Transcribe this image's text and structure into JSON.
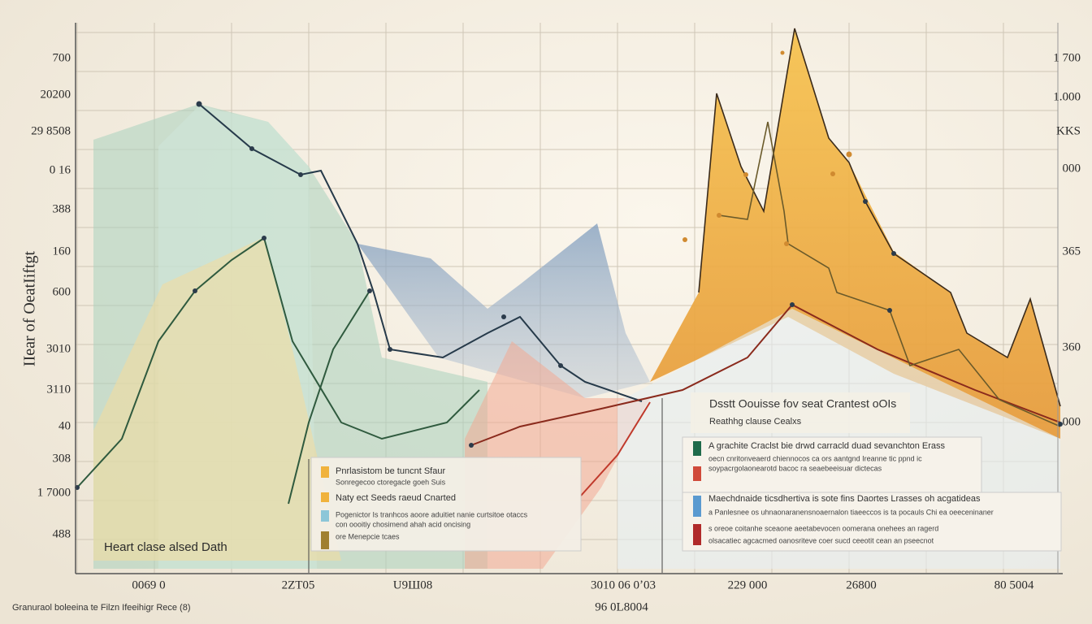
{
  "y_axis_title": "IIear of OeatIiftgt",
  "inset_title": "Heart clase alsed Dath",
  "y_labels": [
    "700",
    "20200",
    "29 8508",
    "0 16",
    "388",
    "160",
    "600",
    "3010",
    "3110",
    "40",
    "308",
    "1 7000",
    "488"
  ],
  "y2_labels": [
    "1 700",
    "1.000",
    "KKS",
    "000",
    "365",
    "360",
    "000"
  ],
  "x_labels": [
    "0069 0",
    "2ZT05",
    "U9Ш08",
    "3010 06 0ʼ03",
    "229 000",
    "26800",
    "80 5004"
  ],
  "x_sub_label": "96 0L8004",
  "footnote": "Granuraol boleeina te Filzn Ifeeihigr Rece (8)",
  "legend_left": [
    "Pnrlasistom be tuncnt Sfaur",
    "Sonregecoo ctoregacle goeh Suis",
    "Naty ect Seeds raeud Cnarted",
    "Pogenictor Is tranhcos aoore aduitiet nanie curtsitoe otaccs",
    "con oooitiy chosimend ahah acid oncising",
    "ore Menepcie tcaes"
  ],
  "note": [
    "Dsstt Oouisse fov seat Crantest oOIs",
    "Reathhg clause Cealxs"
  ],
  "legend_right": [
    "A grachite Craclst bie drwd carracld duad sevanchton Erass",
    "oecn cnritonveaerd chiennocos ca ors aantgnd Ireanne tic ppnd ic",
    "soypacrgolaonearotd bacoc ra seaebeeisuar dictecas",
    "Maechdnaide ticsdhertiva is sote fins Daortes Lrasses oh acgatideas",
    "a Panlesnee os uhnaonaranensnoaernalon tiaeeccos is ta pocauls Chi ea oeeceninaner",
    "s oreoe coitanhe sceaone aeetabevocen oomerana onehees an ragerd",
    "olsacatiec agcacmed oanosriteve coer sucd ceeotit cean an pseecnot"
  ]
}
